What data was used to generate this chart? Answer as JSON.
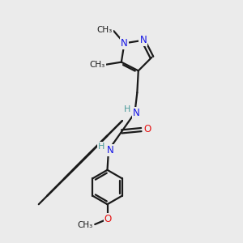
{
  "bg_color": "#ebebeb",
  "bond_color": "#1a1a1a",
  "N_color": "#1414e6",
  "O_color": "#e61414",
  "H_color": "#4a9a9a",
  "C_color": "#1a1a1a",
  "line_width": 1.6,
  "figsize": [
    3.0,
    3.0
  ],
  "dpi": 100,
  "xlim": [
    0,
    10
  ],
  "ylim": [
    0,
    10
  ]
}
